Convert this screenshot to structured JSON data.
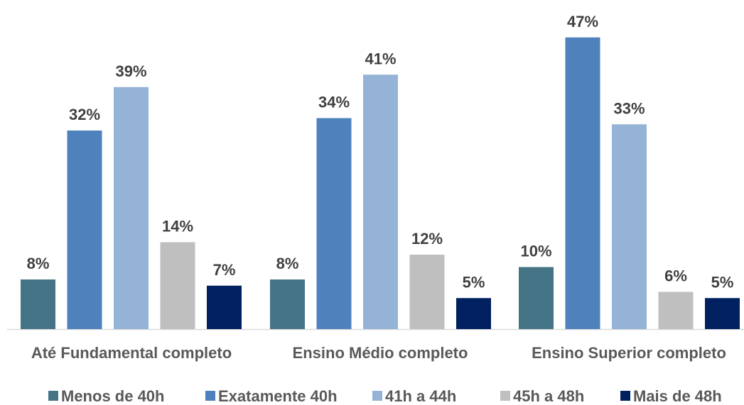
{
  "chart_data": {
    "type": "bar",
    "title": "",
    "xlabel": "",
    "ylabel": "",
    "ylim": [
      0,
      50
    ],
    "grid": false,
    "legend_position": "bottom",
    "categories": [
      "Até Fundamental completo",
      "Ensino Médio completo",
      "Ensino Superior completo"
    ],
    "series": [
      {
        "name": "Menos de 40h",
        "color": "#457486",
        "values": [
          8,
          8,
          10
        ],
        "labels": [
          "8%",
          "8%",
          "10%"
        ]
      },
      {
        "name": "Exatamente 40h",
        "color": "#4F81BD",
        "values": [
          32,
          34,
          47
        ],
        "labels": [
          "32%",
          "34%",
          "47%"
        ]
      },
      {
        "name": "41h a 44h",
        "color": "#95B3D7",
        "values": [
          39,
          41,
          33
        ],
        "labels": [
          "39%",
          "41%",
          "33%"
        ]
      },
      {
        "name": "45h a 48h",
        "color": "#BFBFBF",
        "values": [
          14,
          12,
          6
        ],
        "labels": [
          "14%",
          "12%",
          "6%"
        ]
      },
      {
        "name": "Mais de 48h",
        "color": "#002060",
        "values": [
          7,
          5,
          5
        ],
        "labels": [
          "7%",
          "5%",
          "5%"
        ]
      }
    ]
  }
}
